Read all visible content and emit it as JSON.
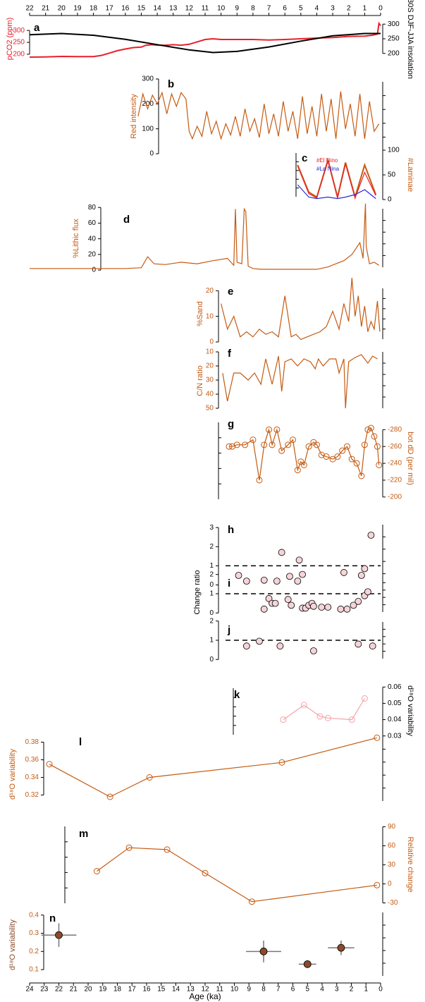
{
  "chart_data": [
    {
      "type": "line",
      "label": "a",
      "ylabel": "pCO2 (ppm)",
      "y2label": "30S DJF-JJA insolation",
      "axis_color": "#e8202a",
      "xlim": [
        22,
        0
      ],
      "xticks": [
        22,
        21,
        20,
        19,
        18,
        17,
        16,
        15,
        14,
        13,
        12,
        11,
        10,
        9,
        8,
        7,
        6,
        5,
        4,
        3,
        2,
        1,
        0
      ],
      "ylim": [
        185,
        345
      ],
      "yticks": [
        200,
        250,
        300
      ],
      "y2lim": [
        185,
        315
      ],
      "y2ticks": [
        200,
        250,
        300
      ],
      "series": [
        {
          "name": "pCO2",
          "color": "#e8202a",
          "x": [
            22,
            21,
            20,
            19,
            18,
            17.5,
            17,
            16.5,
            16,
            15.5,
            15,
            14.7,
            14.3,
            14,
            13.5,
            13,
            12.5,
            12,
            11.5,
            11,
            10.5,
            10,
            9,
            8,
            7,
            6,
            5,
            4,
            3,
            2,
            1,
            0.5,
            0.2,
            0.1,
            0
          ],
          "values": [
            188,
            189,
            191,
            190,
            190,
            195,
            205,
            215,
            222,
            228,
            230,
            238,
            240,
            238,
            238,
            240,
            238,
            242,
            252,
            262,
            265,
            262,
            262,
            262,
            260,
            262,
            265,
            268,
            270,
            275,
            276,
            280,
            285,
            330,
            320
          ]
        },
        {
          "name": "insolation",
          "color": "#000000",
          "axis": "y2",
          "x": [
            22,
            20,
            18,
            16,
            14,
            12,
            10.5,
            9,
            7,
            5,
            3,
            1,
            0
          ],
          "values": [
            264,
            268,
            262,
            248,
            230,
            212,
            203,
            207,
            222,
            242,
            260,
            268,
            268
          ]
        }
      ]
    },
    {
      "type": "line",
      "label": "b",
      "ylabel": "Red intensity",
      "axis_color": "#000000",
      "ylim": [
        0,
        300
      ],
      "yticks": [
        0,
        100,
        200,
        300
      ],
      "series": [
        {
          "color": "#c55a11",
          "x": [
            15.2,
            14.9,
            14.6,
            14.3,
            14.0,
            13.7,
            13.4,
            13.1,
            12.8,
            12.5,
            12.2,
            12.0,
            11.8,
            11.5,
            11.2,
            10.9,
            10.6,
            10.3,
            10.0,
            9.7,
            9.4,
            9.1,
            8.8,
            8.5,
            8.2,
            7.9,
            7.6,
            7.3,
            7.0,
            6.7,
            6.4,
            6.1,
            5.8,
            5.5,
            5.2,
            4.9,
            4.6,
            4.3,
            4.0,
            3.7,
            3.4,
            3.1,
            2.8,
            2.5,
            2.2,
            1.9,
            1.6,
            1.3,
            1.0,
            0.7,
            0.4,
            0.1
          ],
          "values": [
            150,
            240,
            180,
            235,
            200,
            245,
            160,
            240,
            190,
            245,
            220,
            90,
            60,
            110,
            70,
            170,
            80,
            130,
            60,
            120,
            75,
            150,
            70,
            180,
            90,
            140,
            65,
            200,
            80,
            160,
            70,
            210,
            90,
            170,
            60,
            230,
            80,
            190,
            70,
            240,
            90,
            220,
            60,
            250,
            100,
            200,
            70,
            240,
            60,
            210,
            90,
            120
          ]
        }
      ]
    },
    {
      "type": "line",
      "label": "c",
      "ylabel": "#Laminae",
      "axis_color": "#000000",
      "ylim": [
        0,
        100
      ],
      "yticks": [
        0,
        50,
        100
      ],
      "series": [
        {
          "color": "#c55a11",
          "x": [
            5.2,
            4.5,
            4.0,
            3.3,
            2.7,
            2.2,
            1.6,
            1.0,
            0.3
          ],
          "values": [
            70,
            15,
            5,
            80,
            5,
            75,
            5,
            70,
            10
          ]
        },
        {
          "name": "#El Nino",
          "color": "#e8202a",
          "x": [
            5.2,
            4.5,
            4.0,
            3.3,
            2.7,
            2.2,
            1.6,
            1.0,
            0.3
          ],
          "values": [
            68,
            12,
            3,
            78,
            3,
            72,
            3,
            55,
            8
          ]
        },
        {
          "name": "#La Nina",
          "color": "#2b2bd6",
          "x": [
            5.2,
            4.5,
            4.0,
            3.3,
            2.7,
            2.2,
            1.6,
            1.0,
            0.3
          ],
          "values": [
            30,
            5,
            2,
            5,
            2,
            5,
            10,
            20,
            2
          ]
        }
      ]
    },
    {
      "type": "line",
      "label": "d",
      "ylabel": "%Lithic flux",
      "axis_color": "#000000",
      "ylim": [
        0,
        82
      ],
      "yticks": [
        0,
        20,
        40,
        60,
        80
      ],
      "series": [
        {
          "color": "#c55a11",
          "x": [
            22,
            20,
            18,
            16,
            15.0,
            14.6,
            14.2,
            13.5,
            12.5,
            11.5,
            10.5,
            9.6,
            9.2,
            9.1,
            9.0,
            8.7,
            8.55,
            8.45,
            8.3,
            8.0,
            7.5,
            6.0,
            5.0,
            4.0,
            3.3,
            2.8,
            2.3,
            1.8,
            1.3,
            1.1,
            0.95,
            0.9,
            0.7,
            0.4,
            0.1
          ],
          "values": [
            2,
            2,
            2,
            2,
            3,
            17,
            8,
            7,
            10,
            8,
            12,
            15,
            6,
            78,
            10,
            8,
            78,
            75,
            5,
            2,
            1,
            1,
            1,
            1,
            4,
            8,
            12,
            20,
            35,
            15,
            85,
            30,
            8,
            10,
            6
          ]
        }
      ]
    },
    {
      "type": "line",
      "label": "e",
      "ylabel": "%Sand",
      "axis_color": "#c55a11",
      "ylim": [
        0,
        22
      ],
      "yticks": [
        0,
        10,
        20
      ],
      "series": [
        {
          "color": "#c55a11",
          "x": [
            10.0,
            9.6,
            9.2,
            8.8,
            8.4,
            8.0,
            7.6,
            7.2,
            6.8,
            6.4,
            6.0,
            5.6,
            5.3,
            5.0,
            4.6,
            4.2,
            3.8,
            3.4,
            3.0,
            2.6,
            2.3,
            2.0,
            1.8,
            1.6,
            1.4,
            1.2,
            1.0,
            0.8,
            0.6,
            0.4,
            0.2,
            0.05
          ],
          "values": [
            15,
            5,
            10,
            2,
            4,
            2,
            5,
            3,
            4,
            2,
            18,
            2,
            3,
            1,
            2,
            3,
            4,
            6,
            12,
            5,
            15,
            8,
            25,
            10,
            18,
            6,
            14,
            4,
            8,
            5,
            16,
            4
          ]
        }
      ]
    },
    {
      "type": "line",
      "label": "f",
      "ylabel": "C/N ratio",
      "axis_color": "#c55a11",
      "ylim": [
        52,
        8
      ],
      "yticks": [
        10,
        20,
        30,
        40,
        50
      ],
      "series": [
        {
          "color": "#c55a11",
          "x": [
            9.9,
            9.6,
            9.2,
            8.8,
            8.3,
            7.9,
            7.5,
            7.2,
            6.8,
            6.4,
            6.2,
            6.0,
            5.6,
            5.2,
            4.8,
            4.4,
            4.1,
            3.9,
            3.6,
            3.2,
            2.8,
            2.6,
            2.3,
            2.2,
            2.0,
            1.6,
            1.2,
            0.8,
            0.5,
            0.2
          ],
          "values": [
            25,
            45,
            25,
            25,
            30,
            25,
            33,
            15,
            33,
            13,
            38,
            17,
            15,
            20,
            15,
            17,
            22,
            15,
            20,
            15,
            15,
            25,
            15,
            50,
            17,
            14,
            12,
            18,
            13,
            15
          ]
        }
      ]
    },
    {
      "type": "line",
      "label": "g",
      "ylabel": "bot dD (per mil)",
      "axis_color": "#c55a11",
      "ylim": [
        -194,
        -292
      ],
      "yticks": [
        -280,
        -260,
        -240,
        -220,
        -200
      ],
      "series": [
        {
          "color": "#c55a11",
          "marker": "circle",
          "x": [
            9.5,
            9.3,
            9.0,
            8.5,
            8.0,
            7.6,
            7.3,
            7.0,
            6.8,
            6.5,
            6.2,
            5.8,
            5.5,
            5.2,
            5.0,
            4.8,
            4.5,
            4.2,
            4.0,
            3.7,
            3.4,
            3.0,
            2.7,
            2.4,
            2.1,
            1.8,
            1.5,
            1.2,
            1.0,
            0.8,
            0.6,
            0.4,
            0.2,
            0.1
          ],
          "values": [
            -260,
            -260,
            -262,
            -262,
            -268,
            -220,
            -262,
            -280,
            -262,
            -280,
            -255,
            -262,
            -268,
            -232,
            -242,
            -238,
            -260,
            -265,
            -262,
            -250,
            -248,
            -245,
            -248,
            -255,
            -260,
            -245,
            -240,
            -225,
            -262,
            -280,
            -282,
            -272,
            -260,
            -238
          ]
        }
      ]
    },
    {
      "type": "scatter",
      "label": "h",
      "axis_color": "#000000",
      "ylim": [
        -0.2,
        3.3
      ],
      "yticks": [
        0,
        1,
        2,
        3
      ],
      "refline": 1,
      "series": [
        {
          "color": "#f7d4d8",
          "x": [
            8.9,
            8.4,
            7.3,
            6.5,
            6.2,
            5.7,
            5.2,
            5.1,
            4.9,
            2.3,
            1.2,
            1.0,
            0.6
          ],
          "values": [
            0.5,
            0.2,
            0.25,
            0.2,
            1.7,
            0.45,
            0.2,
            1.3,
            0.55,
            0.65,
            0.5,
            0.85,
            2.6
          ]
        }
      ]
    },
    {
      "type": "scatter",
      "label": "i",
      "ylabel": "Change ratio",
      "axis_color": "#000000",
      "ylim": [
        -0.1,
        2.1
      ],
      "yticks": [
        0,
        1,
        2
      ],
      "refline": 1,
      "series": [
        {
          "color": "#f7d4d8",
          "x": [
            7.3,
            7.0,
            6.8,
            6.6,
            5.8,
            5.6,
            4.9,
            4.7,
            4.5,
            4.3,
            4.2,
            3.7,
            3.3,
            2.5,
            2.1,
            1.7,
            1.4,
            1.0,
            0.8
          ],
          "values": [
            0.2,
            0.75,
            0.5,
            0.5,
            0.7,
            0.4,
            0.25,
            0.25,
            0.4,
            0.5,
            0.35,
            0.3,
            0.3,
            0.2,
            0.2,
            0.4,
            0.6,
            0.9,
            1.1
          ]
        }
      ]
    },
    {
      "type": "scatter",
      "label": "j",
      "axis_color": "#000000",
      "ylim": [
        -0.1,
        2.1
      ],
      "yticks": [
        0,
        1,
        2
      ],
      "refline": 1,
      "series": [
        {
          "color": "#f7d4d8",
          "x": [
            8.4,
            7.6,
            6.3,
            4.2,
            1.4,
            0.5
          ],
          "values": [
            0.7,
            0.95,
            0.7,
            0.45,
            0.8,
            0.7
          ]
        }
      ]
    },
    {
      "type": "line",
      "label": "k",
      "ylabel": "d¹⁸O variability",
      "axis_color": "#000000",
      "ylim": [
        0.029,
        0.061
      ],
      "yticks": [
        0.03,
        0.04,
        0.05,
        0.06
      ],
      "series": [
        {
          "color": "#f4a3a8",
          "marker": "circle",
          "x": [
            6.1,
            4.8,
            3.8,
            3.3,
            1.8,
            1.0
          ],
          "values": [
            0.04,
            0.049,
            0.042,
            0.041,
            0.04,
            0.053
          ]
        }
      ]
    },
    {
      "type": "line",
      "label": "l",
      "ylabel": "d¹⁸O variability",
      "axis_color": "#c55a11",
      "ylim": [
        0.31,
        0.39
      ],
      "yticks": [
        0.32,
        0.34,
        0.36,
        0.38
      ],
      "series": [
        {
          "color": "#c55a11",
          "marker": "circle",
          "x": [
            22.65,
            18.5,
            15.8,
            6.75,
            0.25
          ],
          "values": [
            0.355,
            0.318,
            0.34,
            0.357,
            0.385
          ]
        }
      ]
    },
    {
      "type": "line",
      "label": "m",
      "ylabel": "Relative change",
      "axis_color": "#c55a11",
      "ylim": [
        -35,
        95
      ],
      "yticks": [
        -30,
        0,
        30,
        60,
        90
      ],
      "series": [
        {
          "color": "#c55a11",
          "marker": "circle",
          "x": [
            19.4,
            17.2,
            14.6,
            12.0,
            8.8,
            0.25
          ],
          "values": [
            20,
            57,
            54,
            17,
            -28,
            -2
          ]
        }
      ]
    },
    {
      "type": "errorbar",
      "label": "n",
      "ylabel": "d¹⁸O variability",
      "xlabel": "Age (ka)",
      "axis_color": "#c55a11",
      "xlim": [
        24,
        0
      ],
      "xticks": [
        24,
        23,
        22,
        21,
        20,
        19,
        18,
        17,
        16,
        15,
        14,
        13,
        12,
        11,
        10,
        9,
        8,
        7,
        6,
        5,
        4,
        3,
        2,
        1,
        0
      ],
      "ylim": [
        0.05,
        0.43
      ],
      "yticks": [
        0.1,
        0.2,
        0.3,
        0.4
      ],
      "series": [
        {
          "color": "#8b4a2b",
          "x": [
            22,
            8,
            5,
            2.7
          ],
          "values": [
            0.29,
            0.2,
            0.13,
            0.22
          ],
          "xerr": [
            1.2,
            1.2,
            0.6,
            0.9
          ],
          "yerr": [
            0.065,
            0.06,
            0.02,
            0.04
          ]
        }
      ]
    }
  ]
}
